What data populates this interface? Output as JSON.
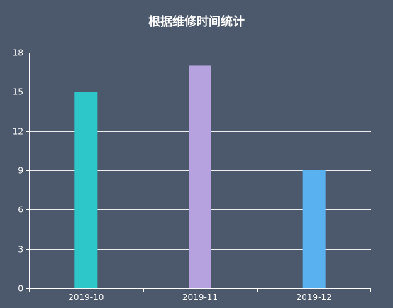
{
  "chart_data": {
    "type": "bar",
    "title": "根据维修时间统计",
    "categories": [
      "2019-10",
      "2019-11",
      "2019-12"
    ],
    "values": [
      15,
      17,
      9
    ],
    "bar_colors": [
      "#2ec7c9",
      "#b6a2de",
      "#5ab1ef"
    ],
    "ylim": [
      0,
      18
    ],
    "yticks": [
      0,
      3,
      6,
      9,
      12,
      15,
      18
    ],
    "grid": true,
    "xlabel": "",
    "ylabel": ""
  },
  "colors": {
    "background": "#4c586b",
    "axis": "#ffffff",
    "grid": "#ffffff",
    "text": "#ffffff"
  }
}
